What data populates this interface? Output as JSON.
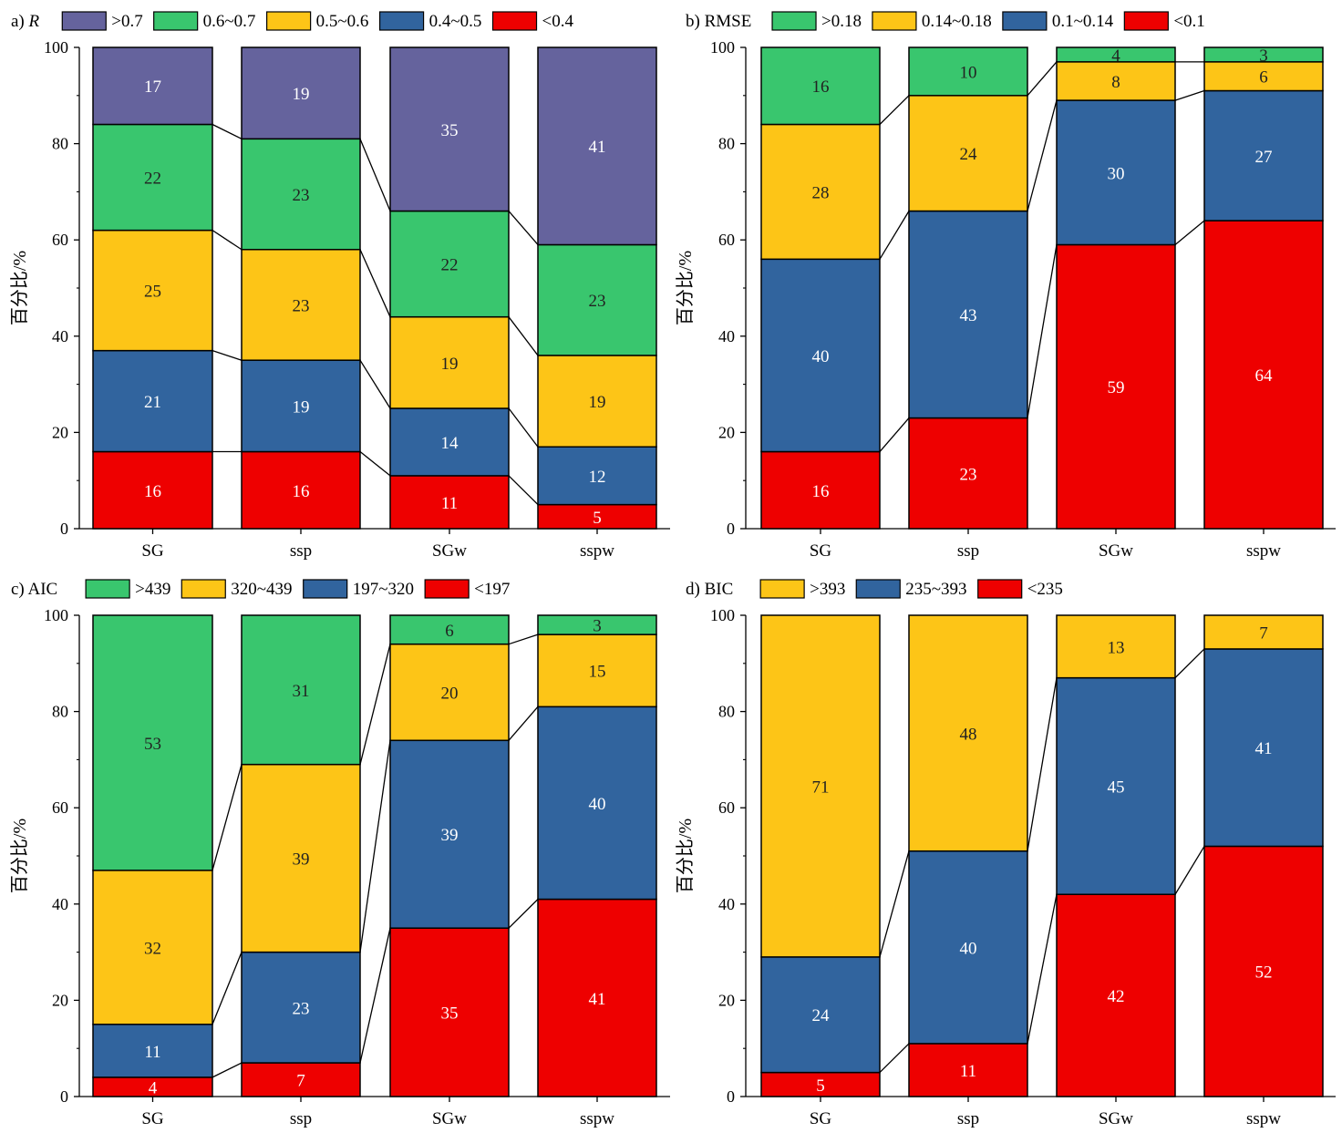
{
  "chart_data": [
    {
      "id": "a",
      "type": "bar",
      "stacked": true,
      "title_prefix": "a)",
      "title": "R",
      "title_italic": true,
      "ylabel": "百分比/%",
      "ylim": [
        0,
        100
      ],
      "yticks": [
        0,
        20,
        40,
        60,
        80,
        100
      ],
      "categories": [
        "SG",
        "ssp",
        "SGw",
        "sspw"
      ],
      "legend_position": "top",
      "series": [
        {
          "name": "<0.4",
          "color": "#EE0000",
          "values": [
            16,
            16,
            11,
            5
          ]
        },
        {
          "name": "0.4~0.5",
          "color": "#31649E",
          "values": [
            21,
            19,
            14,
            12
          ]
        },
        {
          "name": "0.5~0.6",
          "color": "#FDC517",
          "values": [
            25,
            23,
            19,
            19
          ]
        },
        {
          "name": "0.6~0.7",
          "color": "#39C66E",
          "values": [
            22,
            23,
            22,
            23
          ]
        },
        {
          "name": ">0.7",
          "color": "#65639D",
          "values": [
            17,
            19,
            35,
            41
          ]
        }
      ]
    },
    {
      "id": "b",
      "type": "bar",
      "stacked": true,
      "title_prefix": "b)",
      "title": "RMSE",
      "title_italic": false,
      "ylabel": "百分比/%",
      "ylim": [
        0,
        100
      ],
      "yticks": [
        0,
        20,
        40,
        60,
        80,
        100
      ],
      "categories": [
        "SG",
        "ssp",
        "SGw",
        "sspw"
      ],
      "legend_position": "top",
      "series": [
        {
          "name": "<0.1",
          "color": "#EE0000",
          "values": [
            16,
            23,
            59,
            64
          ]
        },
        {
          "name": "0.1~0.14",
          "color": "#31649E",
          "values": [
            40,
            43,
            30,
            27
          ]
        },
        {
          "name": "0.14~0.18",
          "color": "#FDC517",
          "values": [
            28,
            24,
            8,
            6
          ]
        },
        {
          "name": ">0.18",
          "color": "#39C66E",
          "values": [
            16,
            10,
            4,
            3
          ]
        }
      ]
    },
    {
      "id": "c",
      "type": "bar",
      "stacked": true,
      "title_prefix": "c)",
      "title": "AIC",
      "title_italic": false,
      "ylabel": "百分比/%",
      "ylim": [
        0,
        100
      ],
      "yticks": [
        0,
        20,
        40,
        60,
        80,
        100
      ],
      "categories": [
        "SG",
        "ssp",
        "SGw",
        "sspw"
      ],
      "legend_position": "top",
      "series": [
        {
          "name": "<197",
          "color": "#EE0000",
          "values": [
            4,
            7,
            35,
            41
          ]
        },
        {
          "name": "197~320",
          "color": "#31649E",
          "values": [
            11,
            23,
            39,
            40
          ]
        },
        {
          "name": "320~439",
          "color": "#FDC517",
          "values": [
            32,
            39,
            20,
            15
          ]
        },
        {
          "name": ">439",
          "color": "#39C66E",
          "values": [
            53,
            31,
            6,
            3
          ]
        }
      ]
    },
    {
      "id": "d",
      "type": "bar",
      "stacked": true,
      "title_prefix": "d)",
      "title": "BIC",
      "title_italic": false,
      "ylabel": "百分比/%",
      "ylim": [
        0,
        100
      ],
      "yticks": [
        0,
        20,
        40,
        60,
        80,
        100
      ],
      "categories": [
        "SG",
        "ssp",
        "SGw",
        "sspw"
      ],
      "legend_position": "top",
      "series": [
        {
          "name": "<235",
          "color": "#EE0000",
          "values": [
            5,
            11,
            42,
            52
          ]
        },
        {
          "name": "235~393",
          "color": "#31649E",
          "values": [
            24,
            40,
            45,
            41
          ]
        },
        {
          "name": ">393",
          "color": "#FDC517",
          "values": [
            71,
            48,
            13,
            7
          ]
        }
      ]
    }
  ]
}
